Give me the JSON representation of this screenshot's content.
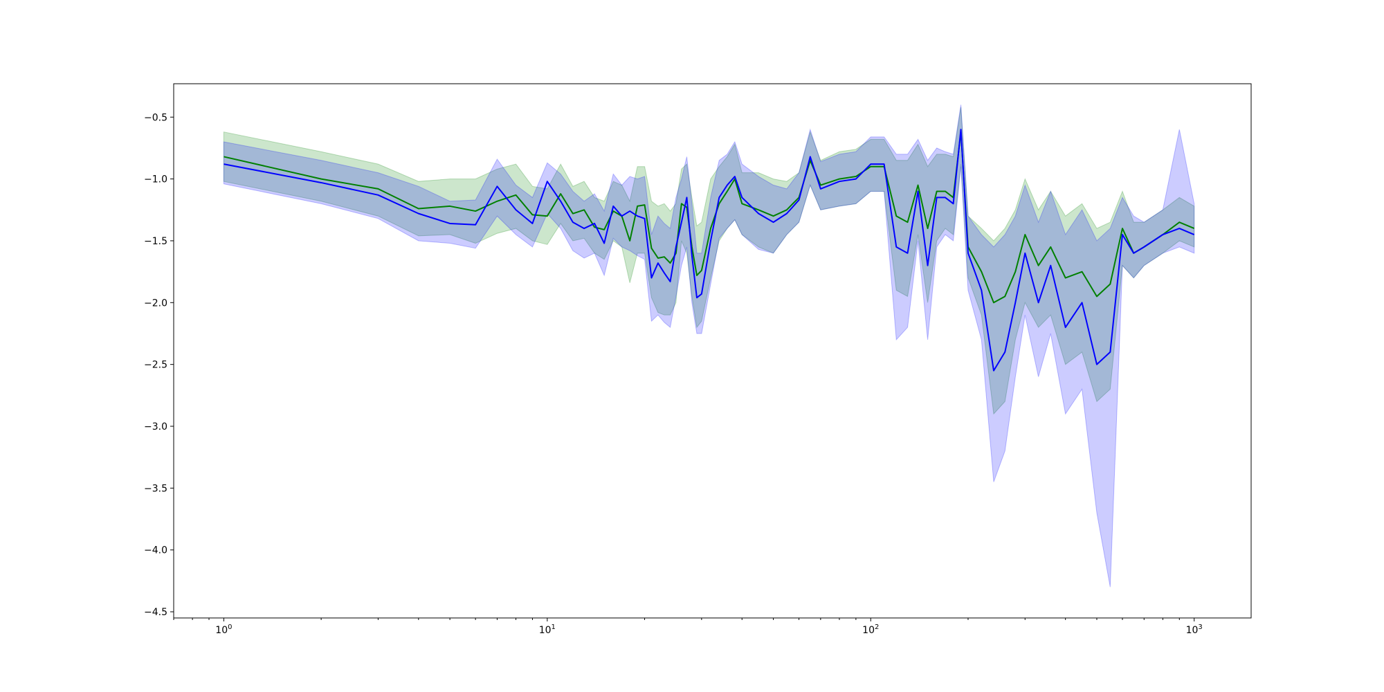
{
  "chart_data": {
    "type": "line",
    "title": "",
    "xlabel": "",
    "ylabel": "",
    "xscale": "log",
    "xlim": [
      0.7,
      1500
    ],
    "ylim": [
      -4.55,
      -0.23
    ],
    "grid": false,
    "legend": "none",
    "x_ticks": [
      {
        "value": 1,
        "label_base": "10",
        "label_exp": "0"
      },
      {
        "value": 10,
        "label_base": "10",
        "label_exp": "1"
      },
      {
        "value": 100,
        "label_base": "10",
        "label_exp": "2"
      },
      {
        "value": 1000,
        "label_base": "10",
        "label_exp": "3"
      }
    ],
    "y_ticks": [
      {
        "value": -0.5,
        "label": "−0.5"
      },
      {
        "value": -1.0,
        "label": "−1.0"
      },
      {
        "value": -1.5,
        "label": "−1.5"
      },
      {
        "value": -2.0,
        "label": "−2.0"
      },
      {
        "value": -2.5,
        "label": "−2.5"
      },
      {
        "value": -3.0,
        "label": "−3.0"
      },
      {
        "value": -3.5,
        "label": "−3.5"
      },
      {
        "value": -4.0,
        "label": "−4.0"
      },
      {
        "value": -4.5,
        "label": "−4.5"
      }
    ],
    "series": [
      {
        "color": "#008000",
        "band_color": "#008000",
        "x": [
          1,
          2,
          3,
          4,
          5,
          6,
          7,
          8,
          9,
          10,
          11,
          12,
          13,
          14,
          15,
          16,
          17,
          18,
          19,
          20,
          21,
          22,
          23,
          24,
          25,
          26,
          27,
          28,
          29,
          30,
          32,
          34,
          36,
          38,
          40,
          45,
          50,
          55,
          60,
          65,
          70,
          80,
          90,
          100,
          110,
          120,
          130,
          140,
          150,
          160,
          170,
          180,
          190,
          200,
          220,
          240,
          260,
          280,
          300,
          330,
          360,
          400,
          450,
          500,
          550,
          600,
          650,
          700,
          800,
          900,
          1000
        ],
        "values": [
          -0.82,
          -1.0,
          -1.08,
          -1.24,
          -1.22,
          -1.26,
          -1.18,
          -1.13,
          -1.29,
          -1.3,
          -1.12,
          -1.28,
          -1.25,
          -1.39,
          -1.41,
          -1.26,
          -1.3,
          -1.5,
          -1.22,
          -1.21,
          -1.56,
          -1.64,
          -1.63,
          -1.68,
          -1.6,
          -1.2,
          -1.23,
          -1.55,
          -1.78,
          -1.74,
          -1.4,
          -1.2,
          -1.1,
          -1.0,
          -1.2,
          -1.25,
          -1.3,
          -1.25,
          -1.15,
          -0.85,
          -1.05,
          -1.0,
          -0.98,
          -0.9,
          -0.9,
          -1.3,
          -1.35,
          -1.05,
          -1.4,
          -1.1,
          -1.1,
          -1.15,
          -0.62,
          -1.55,
          -1.75,
          -2.0,
          -1.95,
          -1.75,
          -1.45,
          -1.7,
          -1.55,
          -1.8,
          -1.75,
          -1.95,
          -1.85,
          -1.4,
          -1.6,
          -1.55,
          -1.45,
          -1.35,
          -1.4
        ],
        "lower": [
          -1.02,
          -1.18,
          -1.3,
          -1.46,
          -1.45,
          -1.52,
          -1.44,
          -1.4,
          -1.5,
          -1.53,
          -1.36,
          -1.5,
          -1.48,
          -1.6,
          -1.65,
          -1.5,
          -1.55,
          -1.84,
          -1.6,
          -1.6,
          -1.96,
          -2.08,
          -2.1,
          -2.1,
          -2.0,
          -1.5,
          -1.6,
          -1.95,
          -2.2,
          -2.15,
          -1.8,
          -1.5,
          -1.4,
          -1.33,
          -1.45,
          -1.55,
          -1.6,
          -1.45,
          -1.35,
          -1.05,
          -1.25,
          -1.22,
          -1.2,
          -1.1,
          -1.1,
          -1.9,
          -1.95,
          -1.45,
          -2.0,
          -1.5,
          -1.4,
          -1.45,
          -0.88,
          -1.8,
          -2.1,
          -2.9,
          -2.8,
          -2.3,
          -2.0,
          -2.2,
          -2.1,
          -2.5,
          -2.4,
          -2.8,
          -2.7,
          -1.7,
          -1.8,
          -1.7,
          -1.6,
          -1.5,
          -1.55
        ],
        "upper": [
          -0.62,
          -0.78,
          -0.88,
          -1.02,
          -1.0,
          -1.0,
          -0.92,
          -0.88,
          -1.06,
          -1.08,
          -0.88,
          -1.06,
          -1.02,
          -1.15,
          -1.18,
          -1.02,
          -1.05,
          -1.18,
          -0.9,
          -0.9,
          -1.18,
          -1.22,
          -1.2,
          -1.26,
          -1.2,
          -0.92,
          -0.88,
          -1.15,
          -1.38,
          -1.35,
          -1.0,
          -0.9,
          -0.82,
          -0.72,
          -0.95,
          -0.95,
          -1.0,
          -1.02,
          -0.95,
          -0.62,
          -0.85,
          -0.78,
          -0.76,
          -0.68,
          -0.68,
          -0.85,
          -0.85,
          -0.72,
          -0.9,
          -0.8,
          -0.8,
          -0.82,
          -0.42,
          -1.3,
          -1.4,
          -1.5,
          -1.4,
          -1.25,
          -1.0,
          -1.25,
          -1.1,
          -1.3,
          -1.2,
          -1.4,
          -1.35,
          -1.1,
          -1.35,
          -1.35,
          -1.25,
          -1.15,
          -1.22
        ]
      },
      {
        "color": "#0000ff",
        "band_color": "#0000ff",
        "x": [
          1,
          2,
          3,
          4,
          5,
          6,
          7,
          8,
          9,
          10,
          11,
          12,
          13,
          14,
          15,
          16,
          17,
          18,
          19,
          20,
          21,
          22,
          23,
          24,
          25,
          26,
          27,
          28,
          29,
          30,
          32,
          34,
          36,
          38,
          40,
          45,
          50,
          55,
          60,
          65,
          70,
          80,
          90,
          100,
          110,
          120,
          130,
          140,
          150,
          160,
          170,
          180,
          190,
          200,
          220,
          240,
          260,
          280,
          300,
          330,
          360,
          400,
          450,
          500,
          550,
          600,
          650,
          700,
          800,
          900,
          1000
        ],
        "values": [
          -0.88,
          -1.03,
          -1.13,
          -1.28,
          -1.36,
          -1.37,
          -1.06,
          -1.25,
          -1.36,
          -1.02,
          -1.18,
          -1.35,
          -1.4,
          -1.36,
          -1.52,
          -1.22,
          -1.3,
          -1.26,
          -1.3,
          -1.32,
          -1.8,
          -1.68,
          -1.76,
          -1.83,
          -1.55,
          -1.35,
          -1.15,
          -1.62,
          -1.96,
          -1.93,
          -1.5,
          -1.15,
          -1.05,
          -0.98,
          -1.15,
          -1.28,
          -1.35,
          -1.28,
          -1.17,
          -0.82,
          -1.08,
          -1.02,
          -1.0,
          -0.88,
          -0.88,
          -1.55,
          -1.6,
          -1.1,
          -1.7,
          -1.15,
          -1.15,
          -1.2,
          -0.6,
          -1.6,
          -1.9,
          -2.55,
          -2.4,
          -2.0,
          -1.6,
          -2.0,
          -1.7,
          -2.2,
          -2.0,
          -2.5,
          -2.4,
          -1.45,
          -1.6,
          -1.55,
          -1.45,
          -1.4,
          -1.45
        ],
        "lower": [
          -1.04,
          -1.2,
          -1.32,
          -1.5,
          -1.52,
          -1.56,
          -1.3,
          -1.45,
          -1.55,
          -1.28,
          -1.4,
          -1.58,
          -1.64,
          -1.6,
          -1.78,
          -1.48,
          -1.55,
          -1.58,
          -1.62,
          -1.65,
          -2.15,
          -2.1,
          -2.16,
          -2.2,
          -1.95,
          -1.7,
          -1.55,
          -2.0,
          -2.25,
          -2.25,
          -1.85,
          -1.48,
          -1.4,
          -1.33,
          -1.45,
          -1.57,
          -1.6,
          -1.45,
          -1.35,
          -1.05,
          -1.25,
          -1.22,
          -1.2,
          -1.1,
          -1.1,
          -2.3,
          -2.2,
          -1.5,
          -2.3,
          -1.55,
          -1.45,
          -1.5,
          -0.9,
          -1.9,
          -2.3,
          -3.45,
          -3.2,
          -2.6,
          -2.1,
          -2.6,
          -2.25,
          -2.9,
          -2.7,
          -3.7,
          -4.3,
          -1.7,
          -1.8,
          -1.7,
          -1.6,
          -1.55,
          -1.6
        ],
        "upper": [
          -0.7,
          -0.85,
          -0.95,
          -1.06,
          -1.18,
          -1.17,
          -0.84,
          -1.05,
          -1.15,
          -0.87,
          -0.96,
          -1.1,
          -1.18,
          -1.12,
          -1.26,
          -0.96,
          -1.05,
          -0.98,
          -1.0,
          -0.98,
          -1.45,
          -1.3,
          -1.36,
          -1.4,
          -1.15,
          -1.0,
          -0.82,
          -1.2,
          -1.6,
          -1.6,
          -1.15,
          -0.85,
          -0.8,
          -0.7,
          -0.88,
          -0.98,
          -1.05,
          -1.08,
          -0.95,
          -0.6,
          -0.86,
          -0.8,
          -0.78,
          -0.66,
          -0.66,
          -0.8,
          -0.8,
          -0.68,
          -0.85,
          -0.75,
          -0.78,
          -0.8,
          -0.4,
          -1.3,
          -1.45,
          -1.55,
          -1.45,
          -1.3,
          -1.05,
          -1.35,
          -1.1,
          -1.45,
          -1.25,
          -1.5,
          -1.4,
          -1.15,
          -1.3,
          -1.35,
          -1.25,
          -0.6,
          -1.2
        ]
      }
    ]
  }
}
